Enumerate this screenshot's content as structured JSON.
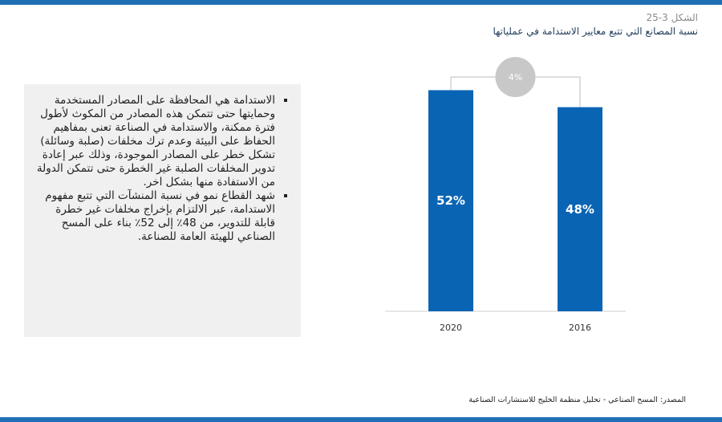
{
  "figure": {
    "number": "الشكل 3-25",
    "title": "نسبة المصانع التي تتبع معايير الاستدامة في عملياتها"
  },
  "text_box": {
    "bullets": [
      "الاستدامة هي المحافظة على المصادر المستخدمة وحمايتها حتى تتمكن هذه المصادر من المكوث لأطول فترة ممكنة، والاستدامة في الصناعة تعنى بمفاهيم الحفاظ على البيئة وعدم ترك مخلفات (صلبة وسائلة) تشكل خطر على المصادر الموجودة، وذلك عبر إعادة تدوير المخلفات الصلبة غير الخطرة حتى تتمكن الدولة من الاستفادة منها بشكل اخر.",
      "شهد القطاع نمو في نسبة المنشآت التي تتبع مفهوم الاستدامة، عبر الالتزام بإخراج مخلفات غير خطرة قابلة للتدوير، من 48٪ إلى 52٪ بناء على المسح الصناعي للهيئة العامة للصناعة."
    ]
  },
  "source": "المصدر: المسح الصناعي - تحليل منظمة الخليج للاستشارات الصناعية",
  "colors": {
    "bar": "#0a64b4",
    "bubble": "#c8c8c8",
    "accent_bar": "#1f6fb5"
  },
  "chart_data": {
    "type": "bar",
    "categories": [
      "2020",
      "2016"
    ],
    "values": [
      52,
      48
    ],
    "value_labels": [
      "52%",
      "48%"
    ],
    "change_label": "4%",
    "title": "",
    "xlabel": "",
    "ylabel": "",
    "ylim": [
      0,
      60
    ],
    "grid": false
  }
}
